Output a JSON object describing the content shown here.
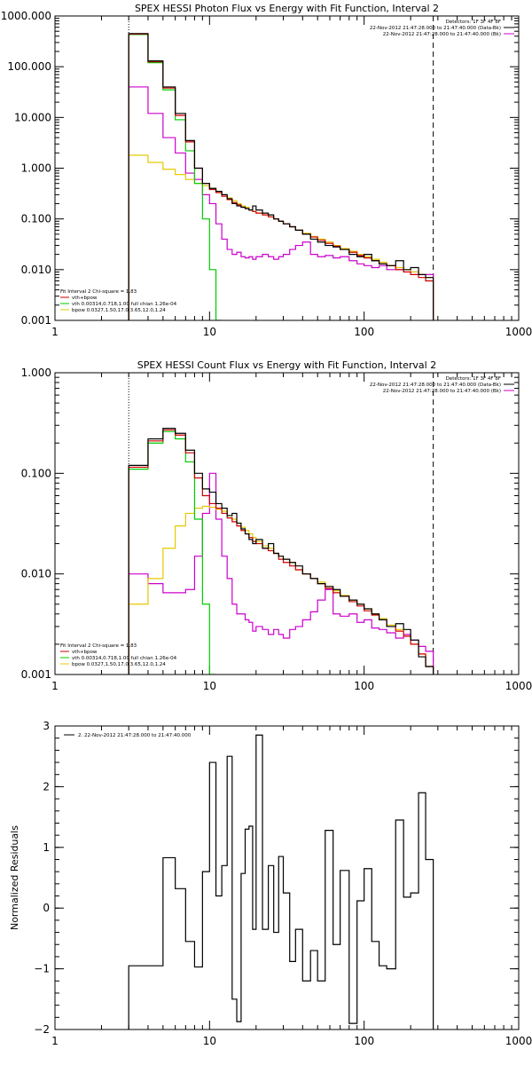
{
  "colors": {
    "axis": "#000000",
    "data": "#000000",
    "bk": "#ff0000",
    "vth": "#00cc00",
    "bpow": "#e6c800",
    "total": "#cc0000",
    "model_bk": "#cc00cc"
  },
  "chart_data": [
    {
      "type": "line",
      "title": "SPEX HESSI Photon Flux vs Energy with Fit Function, Interval 2",
      "xlabel": "",
      "ylabel": "",
      "xscale": "log",
      "yscale": "log",
      "xlim": [
        1,
        1000
      ],
      "ylim": [
        0.001,
        1000
      ],
      "xticks": [
        "1",
        "10",
        "100",
        "1000"
      ],
      "yticks": [
        "0.001",
        "0.010",
        "0.100",
        "1.000",
        "10.000",
        "100.000",
        "1000.000"
      ],
      "legend_top": [
        "Detectors: 1F 3F 4F 8F",
        "22-Nov-2012 21:47:28.000 to 21:47:40.000 (Data-Bk)",
        "22-Nov-2012 21:47:28.000 to 21:47:40.000 (Bk)"
      ],
      "legend_bottom": [
        "Fit Interval 2   Chi-square = 1.83",
        "vth+bpow",
        "vth 0.00314,0.718,1.00  full chian 1.26e-04",
        "bpow 0.0327,1.50,17.0,3.65,12.0,1.24"
      ],
      "vlines": [
        3.0,
        280
      ],
      "series": [
        {
          "name": "Data-Bk",
          "color": "#000000",
          "edges": [
            3,
            4,
            5,
            6,
            7,
            8,
            9,
            10,
            11,
            12,
            13,
            14,
            15,
            16,
            17,
            18,
            19,
            20,
            22,
            24,
            26,
            28,
            30,
            33,
            36,
            40,
            45,
            50,
            56,
            63,
            70,
            80,
            90,
            100,
            112,
            125,
            140,
            160,
            180,
            200,
            225,
            250,
            280
          ],
          "values": [
            450,
            130,
            40,
            12,
            3.5,
            1.0,
            0.5,
            0.4,
            0.35,
            0.3,
            0.25,
            0.2,
            0.18,
            0.17,
            0.16,
            0.15,
            0.18,
            0.15,
            0.13,
            0.12,
            0.1,
            0.09,
            0.08,
            0.07,
            0.06,
            0.05,
            0.04,
            0.035,
            0.03,
            0.028,
            0.025,
            0.02,
            0.018,
            0.02,
            0.015,
            0.013,
            0.012,
            0.015,
            0.01,
            0.011,
            0.008,
            0.007
          ]
        },
        {
          "name": "vth+bpow",
          "color": "#cc0000",
          "edges": [
            3,
            4,
            5,
            6,
            7,
            8,
            9,
            10,
            11,
            12,
            13,
            14,
            15,
            16,
            17,
            18,
            19,
            20,
            22,
            24,
            26,
            28,
            30,
            33,
            36,
            40,
            45,
            50,
            56,
            63,
            70,
            80,
            90,
            100,
            112,
            125,
            140,
            160,
            180,
            200,
            225,
            250,
            280
          ],
          "values": [
            440,
            125,
            38,
            11,
            3.3,
            1.0,
            0.5,
            0.38,
            0.33,
            0.28,
            0.24,
            0.21,
            0.19,
            0.17,
            0.16,
            0.15,
            0.14,
            0.13,
            0.12,
            0.11,
            0.1,
            0.09,
            0.08,
            0.07,
            0.06,
            0.05,
            0.044,
            0.038,
            0.033,
            0.029,
            0.025,
            0.022,
            0.019,
            0.017,
            0.015,
            0.013,
            0.012,
            0.01,
            0.009,
            0.008,
            0.007,
            0.006
          ]
        },
        {
          "name": "vth",
          "color": "#00cc00",
          "edges": [
            3,
            4,
            5,
            6,
            7,
            8,
            9,
            10,
            11,
            12
          ],
          "values": [
            430,
            120,
            35,
            9,
            2.2,
            0.5,
            0.1,
            0.01,
            0.001
          ]
        },
        {
          "name": "bpow",
          "color": "#e6c800",
          "edges": [
            3,
            4,
            5,
            6,
            7,
            8,
            9,
            10,
            11,
            12,
            13,
            14,
            15,
            16,
            17,
            18,
            19,
            20,
            22,
            24,
            26,
            28,
            30,
            33,
            36,
            40,
            45,
            50,
            56,
            63,
            70,
            80,
            90,
            100,
            112,
            125,
            140,
            160,
            180,
            200,
            225,
            250,
            280
          ],
          "values": [
            1.8,
            1.3,
            0.95,
            0.75,
            0.6,
            0.5,
            0.45,
            0.4,
            0.35,
            0.3,
            0.26,
            0.23,
            0.2,
            0.18,
            0.17,
            0.15,
            0.14,
            0.13,
            0.12,
            0.11,
            0.1,
            0.09,
            0.08,
            0.07,
            0.06,
            0.052,
            0.045,
            0.04,
            0.035,
            0.03,
            0.026,
            0.023,
            0.02,
            0.018,
            0.016,
            0.014,
            0.012,
            0.011,
            0.01,
            0.009,
            0.008,
            0.007
          ]
        },
        {
          "name": "Bk",
          "color": "#cc00cc",
          "edges": [
            3,
            4,
            5,
            6,
            7,
            8,
            9,
            10,
            11,
            12,
            13,
            14,
            15,
            16,
            17,
            18,
            19,
            20,
            22,
            24,
            26,
            28,
            30,
            33,
            36,
            40,
            45,
            50,
            56,
            63,
            70,
            80,
            90,
            100,
            112,
            125,
            140,
            160,
            180,
            200,
            225,
            250,
            280
          ],
          "values": [
            40,
            12,
            4,
            2,
            0.8,
            0.6,
            0.3,
            0.2,
            0.08,
            0.04,
            0.025,
            0.02,
            0.022,
            0.018,
            0.017,
            0.018,
            0.016,
            0.018,
            0.02,
            0.018,
            0.016,
            0.018,
            0.02,
            0.025,
            0.03,
            0.035,
            0.02,
            0.018,
            0.019,
            0.017,
            0.018,
            0.015,
            0.013,
            0.012,
            0.011,
            0.012,
            0.01,
            0.01,
            0.009,
            0.009,
            0.008,
            0.008
          ]
        }
      ]
    },
    {
      "type": "line",
      "title": "SPEX HESSI Count Flux vs Energy with Fit Function, Interval 2",
      "xlabel": "",
      "ylabel": "",
      "xscale": "log",
      "yscale": "log",
      "xlim": [
        1,
        1000
      ],
      "ylim": [
        0.001,
        1
      ],
      "xticks": [
        "1",
        "10",
        "100",
        "1000"
      ],
      "yticks": [
        "0.001",
        "0.010",
        "0.100",
        "1.000"
      ],
      "legend_top": [
        "Detectors: 1F 3F 4F 8F",
        "22-Nov-2012 21:47:28.000 to 21:47:40.000 (Data-Bk)",
        "22-Nov-2012 21:47:28.000 to 21:47:40.000 (Bk)"
      ],
      "legend_bottom": [
        "Fit Interval 2   Chi-square = 1.83",
        "vth+bpow",
        "vth 0.00314,0.718,1.00  full chian 1.26e-04",
        "bpow 0.0327,1.50,17.0,3.65,12.0,1.24"
      ],
      "vlines": [
        3.0,
        280
      ],
      "series": [
        {
          "name": "Data-Bk",
          "color": "#000000",
          "edges": [
            3,
            4,
            5,
            6,
            7,
            8,
            9,
            10,
            11,
            12,
            13,
            14,
            15,
            16,
            17,
            18,
            19,
            20,
            22,
            24,
            26,
            28,
            30,
            33,
            36,
            40,
            45,
            50,
            56,
            63,
            70,
            80,
            90,
            100,
            112,
            125,
            140,
            160,
            180,
            200,
            225,
            250,
            280
          ],
          "values": [
            0.12,
            0.22,
            0.28,
            0.25,
            0.17,
            0.1,
            0.07,
            0.065,
            0.05,
            0.045,
            0.038,
            0.04,
            0.032,
            0.028,
            0.025,
            0.022,
            0.02,
            0.022,
            0.018,
            0.02,
            0.016,
            0.015,
            0.014,
            0.013,
            0.012,
            0.01,
            0.009,
            0.008,
            0.0075,
            0.007,
            0.006,
            0.0055,
            0.005,
            0.0045,
            0.004,
            0.0035,
            0.003,
            0.0032,
            0.0028,
            0.0022,
            0.0015,
            0.0012
          ]
        },
        {
          "name": "vth+bpow",
          "color": "#cc0000",
          "edges": [
            3,
            4,
            5,
            6,
            7,
            8,
            9,
            10,
            11,
            12,
            13,
            14,
            15,
            16,
            17,
            18,
            19,
            20,
            22,
            24,
            26,
            28,
            30,
            33,
            36,
            40,
            45,
            50,
            56,
            63,
            70,
            80,
            90,
            100,
            112,
            125,
            140,
            160,
            180,
            200,
            225,
            250,
            280
          ],
          "values": [
            0.115,
            0.21,
            0.27,
            0.24,
            0.16,
            0.09,
            0.06,
            0.05,
            0.045,
            0.04,
            0.036,
            0.033,
            0.03,
            0.027,
            0.025,
            0.023,
            0.021,
            0.02,
            0.018,
            0.017,
            0.016,
            0.014,
            0.013,
            0.012,
            0.011,
            0.01,
            0.009,
            0.008,
            0.0072,
            0.0065,
            0.006,
            0.0053,
            0.0048,
            0.0043,
            0.0039,
            0.0035,
            0.003,
            0.0027,
            0.0024,
            0.002,
            0.0016,
            0.0012
          ]
        },
        {
          "name": "vth",
          "color": "#00cc00",
          "edges": [
            3,
            4,
            5,
            6,
            7,
            8,
            9,
            10,
            11
          ],
          "values": [
            0.11,
            0.2,
            0.26,
            0.22,
            0.13,
            0.035,
            0.005,
            0.001
          ]
        },
        {
          "name": "bpow",
          "color": "#e6c800",
          "edges": [
            3,
            4,
            5,
            6,
            7,
            8,
            9,
            10,
            11,
            12,
            13,
            14,
            15,
            16,
            17,
            18,
            19,
            20,
            22,
            24,
            26,
            28,
            30,
            33,
            36,
            40,
            45,
            50,
            56,
            63,
            70,
            80,
            90,
            100,
            112,
            125,
            140,
            160,
            180,
            200,
            225,
            250,
            280
          ],
          "values": [
            0.005,
            0.009,
            0.018,
            0.03,
            0.04,
            0.045,
            0.047,
            0.046,
            0.044,
            0.042,
            0.038,
            0.035,
            0.032,
            0.029,
            0.027,
            0.025,
            0.023,
            0.021,
            0.019,
            0.018,
            0.016,
            0.015,
            0.014,
            0.013,
            0.011,
            0.01,
            0.009,
            0.0083,
            0.0075,
            0.0068,
            0.0061,
            0.0055,
            0.005,
            0.0045,
            0.004,
            0.0036,
            0.0031,
            0.0028,
            0.0024,
            0.002,
            0.0016,
            0.0012
          ]
        },
        {
          "name": "Bk",
          "color": "#cc00cc",
          "edges": [
            3,
            4,
            5,
            6,
            7,
            8,
            9,
            10,
            11,
            12,
            13,
            14,
            15,
            16,
            17,
            18,
            19,
            20,
            22,
            24,
            26,
            28,
            30,
            33,
            36,
            40,
            45,
            50,
            56,
            63,
            70,
            80,
            90,
            100,
            112,
            125,
            140,
            160,
            180,
            200,
            225,
            250,
            280
          ],
          "values": [
            0.01,
            0.008,
            0.0065,
            0.0065,
            0.007,
            0.015,
            0.04,
            0.1,
            0.035,
            0.015,
            0.009,
            0.005,
            0.004,
            0.004,
            0.0035,
            0.0033,
            0.0027,
            0.003,
            0.0028,
            0.0025,
            0.0028,
            0.0025,
            0.0023,
            0.0028,
            0.003,
            0.0035,
            0.0042,
            0.0055,
            0.007,
            0.004,
            0.0038,
            0.004,
            0.0033,
            0.0035,
            0.0029,
            0.0028,
            0.0026,
            0.0023,
            0.0025,
            0.0022,
            0.0019,
            0.0017
          ]
        }
      ]
    },
    {
      "type": "line",
      "title": "",
      "xlabel": "",
      "ylabel": "Normalized Residuals",
      "xscale": "log",
      "yscale": "linear",
      "xlim": [
        1,
        1000
      ],
      "ylim": [
        -2,
        3
      ],
      "xticks": [
        "1",
        "10",
        "100",
        "1000"
      ],
      "yticks": [
        "−2",
        "−1",
        "0",
        "1",
        "2",
        "3"
      ],
      "legend_top": [
        "2. 22-Nov-2012 21:47:28.000 to 21:47:40.000"
      ],
      "series": [
        {
          "name": "2. 22-Nov-2012 21:47:28.000 to 21:47:40.000",
          "color": "#000000",
          "edges": [
            3,
            4,
            5,
            6,
            7,
            8,
            9,
            10,
            11,
            12,
            13,
            14,
            15,
            16,
            17,
            18,
            19,
            20,
            22,
            24,
            26,
            28,
            30,
            33,
            36,
            40,
            45,
            50,
            56,
            63,
            70,
            80,
            90,
            100,
            112,
            125,
            140,
            160,
            180,
            200,
            225,
            250,
            280
          ],
          "values": [
            -0.95,
            -0.95,
            0.83,
            0.32,
            -0.55,
            -0.97,
            0.6,
            2.4,
            0.2,
            0.7,
            2.5,
            -1.5,
            -1.87,
            0.57,
            1.3,
            1.35,
            -0.35,
            2.85,
            -0.35,
            0.7,
            -0.4,
            0.85,
            0.25,
            -0.88,
            -0.35,
            -1.2,
            -0.7,
            -1.2,
            1.28,
            -0.6,
            0.62,
            -1.9,
            0.12,
            0.65,
            -0.55,
            -0.95,
            -1.0,
            1.45,
            0.18,
            0.25,
            1.9,
            0.8
          ]
        }
      ]
    }
  ]
}
